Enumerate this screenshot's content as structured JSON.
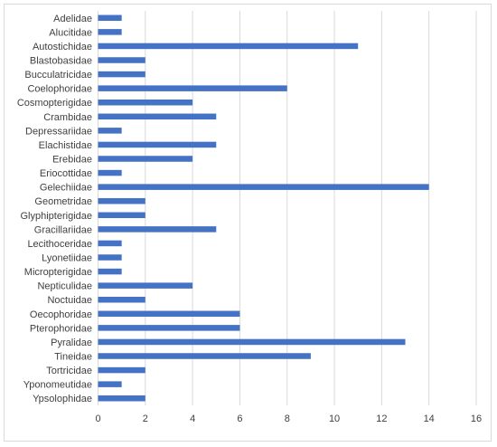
{
  "chart_data": {
    "type": "bar",
    "orientation": "horizontal",
    "title": "",
    "xlabel": "",
    "ylabel": "",
    "xlim": [
      0,
      16
    ],
    "x_ticks": [
      0,
      2,
      4,
      6,
      8,
      10,
      12,
      14,
      16
    ],
    "grid": "vertical major gridlines",
    "legend": "none",
    "bar_color": "#4472c4",
    "categories": [
      "Adelidae",
      "Alucitidae",
      "Autostichidae",
      "Blastobasidae",
      "Bucculatricidae",
      "Coelophoridae",
      "Cosmopterigidae",
      "Crambidae",
      "Depressariidae",
      "Elachistidae",
      "Erebidae",
      "Eriocottidae",
      "Gelechiidae",
      "Geometridae",
      "Glyphipterigidae",
      "Gracillariidae",
      "Lecithoceridae",
      "Lyonetiidae",
      "Micropterigidae",
      "Nepticulidae",
      "Noctuidae",
      "Oecophoridae",
      "Pterophoridae",
      "Pyralidae",
      "Tineidae",
      "Tortricidae",
      "Yponomeutidae",
      "Ypsolophidae"
    ],
    "values": [
      1,
      1,
      11,
      2,
      2,
      8,
      4,
      5,
      1,
      5,
      4,
      1,
      14,
      2,
      2,
      5,
      1,
      1,
      1,
      4,
      2,
      6,
      6,
      13,
      9,
      2,
      1,
      2
    ]
  }
}
